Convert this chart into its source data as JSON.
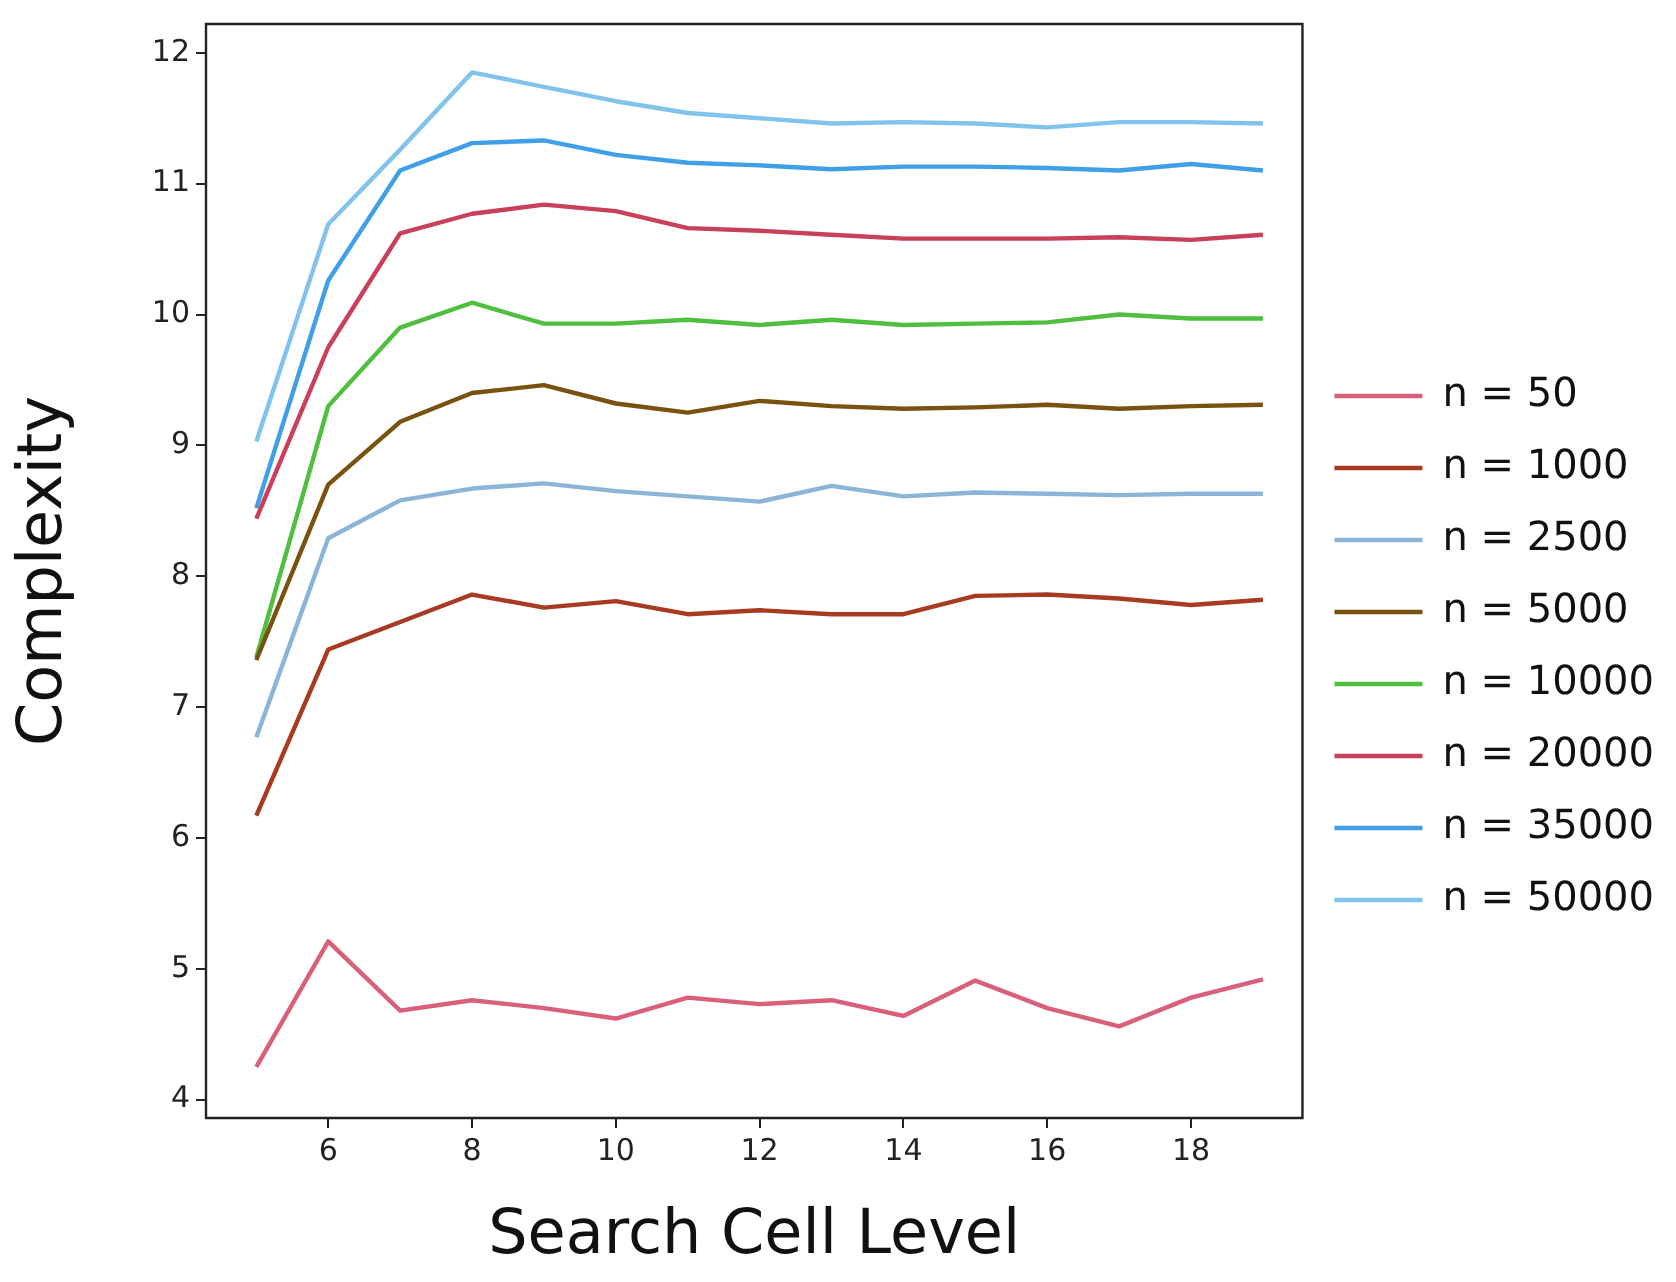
{
  "chart_data": {
    "type": "line",
    "xlabel": "Search Cell Level",
    "ylabel": "Complexity",
    "xlim": [
      4.3,
      19.55
    ],
    "xticks": [
      6,
      8,
      10,
      12,
      14,
      16,
      18
    ],
    "ylim": [
      3.86,
      12.22
    ],
    "yticks": [
      4,
      5,
      6,
      7,
      8,
      9,
      10,
      11,
      12
    ],
    "grid": false,
    "legend": "right",
    "marker": "none",
    "line_style": "solid",
    "x": [
      5,
      6,
      7,
      8,
      9,
      10,
      11,
      12,
      13,
      14,
      15,
      16,
      17,
      18,
      19
    ],
    "series": [
      {
        "name": "n = 50",
        "color": "#d9607a",
        "values": [
          4.25,
          5.21,
          4.68,
          4.76,
          4.7,
          4.62,
          4.78,
          4.73,
          4.76,
          4.64,
          4.91,
          4.7,
          4.56,
          4.78,
          4.92
        ]
      },
      {
        "name": "n = 1000",
        "color": "#a83a22",
        "values": [
          6.17,
          7.44,
          7.65,
          7.86,
          7.76,
          7.81,
          7.71,
          7.74,
          7.71,
          7.71,
          7.85,
          7.86,
          7.83,
          7.78,
          7.82
        ]
      },
      {
        "name": "n = 2500",
        "color": "#8ab4d8",
        "values": [
          6.77,
          8.29,
          8.58,
          8.67,
          8.71,
          8.65,
          8.61,
          8.57,
          8.69,
          8.61,
          8.64,
          8.63,
          8.62,
          8.63,
          8.63
        ]
      },
      {
        "name": "n = 5000",
        "color": "#7a5210",
        "values": [
          7.36,
          8.7,
          9.18,
          9.4,
          9.46,
          9.32,
          9.25,
          9.34,
          9.3,
          9.28,
          9.29,
          9.31,
          9.28,
          9.3,
          9.31
        ]
      },
      {
        "name": "n = 10000",
        "color": "#4fbf3f",
        "values": [
          7.38,
          9.3,
          9.9,
          10.09,
          9.93,
          9.93,
          9.96,
          9.92,
          9.96,
          9.92,
          9.93,
          9.94,
          10.0,
          9.97,
          9.97
        ]
      },
      {
        "name": "n = 20000",
        "color": "#c8405a",
        "values": [
          8.44,
          9.75,
          10.62,
          10.77,
          10.84,
          10.79,
          10.66,
          10.64,
          10.61,
          10.58,
          10.58,
          10.58,
          10.59,
          10.57,
          10.61
        ]
      },
      {
        "name": "n = 35000",
        "color": "#3fa0e8",
        "values": [
          8.52,
          10.26,
          11.1,
          11.31,
          11.33,
          11.22,
          11.16,
          11.14,
          11.11,
          11.13,
          11.13,
          11.12,
          11.1,
          11.15,
          11.1
        ]
      },
      {
        "name": "n = 50000",
        "color": "#80c4ee",
        "values": [
          9.03,
          10.69,
          11.26,
          11.85,
          11.74,
          11.63,
          11.54,
          11.5,
          11.46,
          11.47,
          11.46,
          11.43,
          11.47,
          11.47,
          11.46
        ]
      }
    ]
  }
}
